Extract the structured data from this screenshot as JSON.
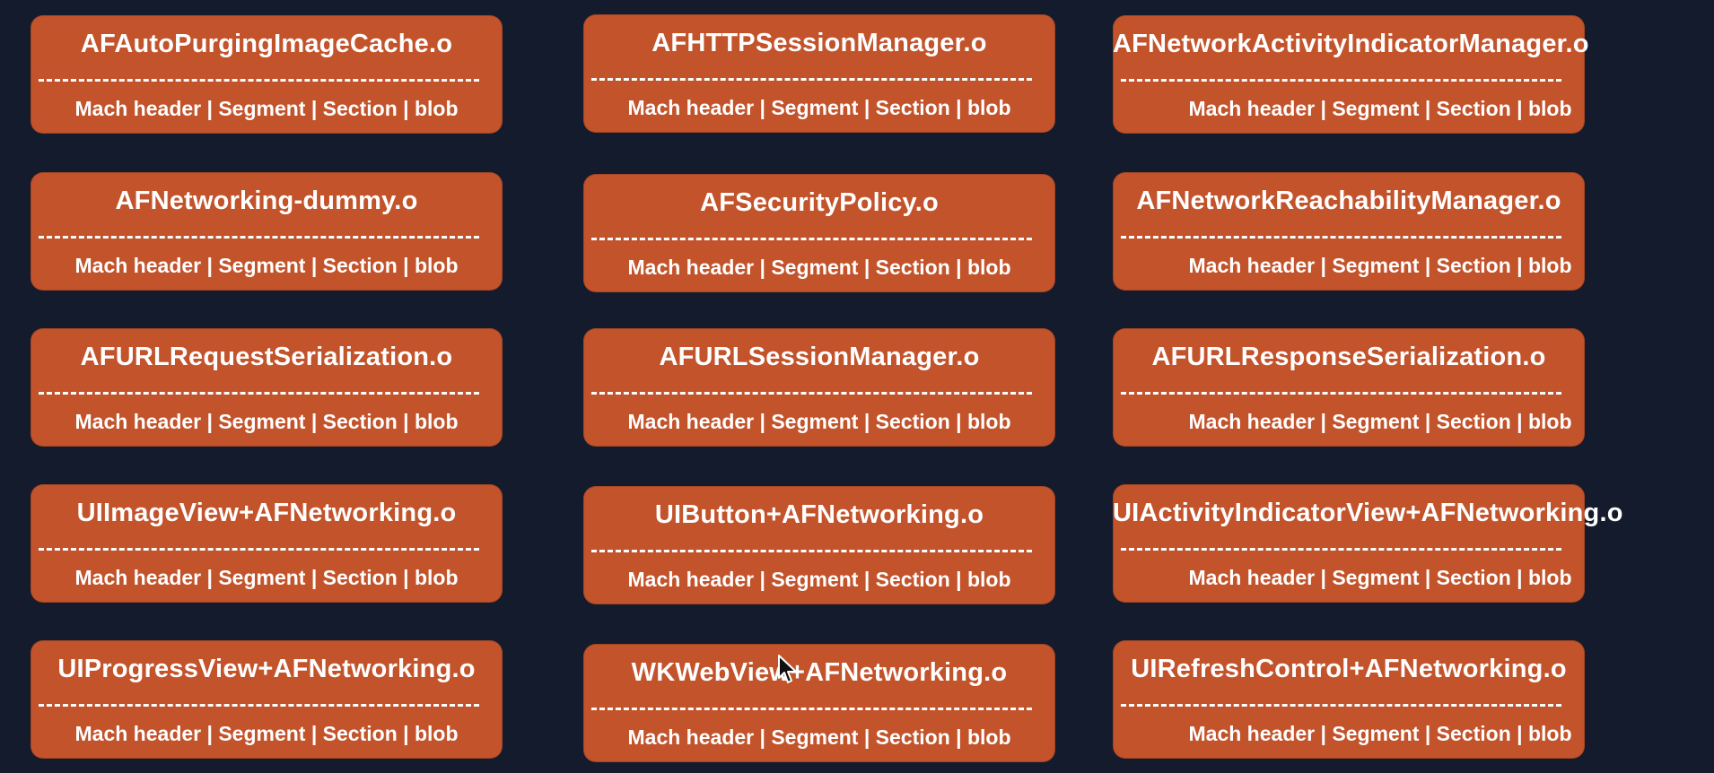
{
  "boxes": [
    {
      "name": "AFAutoPurgingImageCache.o",
      "layout": "Mach header | Segment | Section | blob"
    },
    {
      "name": "AFHTTPSessionManager.o",
      "layout": "Mach header | Segment | Section | blob"
    },
    {
      "name": "AFNetworkActivityIndicatorManager.o",
      "layout": "Mach header | Segment | Section | blob"
    },
    {
      "name": "AFNetworking-dummy.o",
      "layout": "Mach header | Segment | Section | blob"
    },
    {
      "name": "AFSecurityPolicy.o",
      "layout": "Mach header | Segment | Section | blob"
    },
    {
      "name": "AFNetworkReachabilityManager.o",
      "layout": "Mach header | Segment | Section | blob"
    },
    {
      "name": "AFURLRequestSerialization.o",
      "layout": "Mach header | Segment | Section | blob"
    },
    {
      "name": "AFURLSessionManager.o",
      "layout": "Mach header | Segment | Section | blob"
    },
    {
      "name": "AFURLResponseSerialization.o",
      "layout": "Mach header | Segment | Section | blob"
    },
    {
      "name": "UIImageView+AFNetworking.o",
      "layout": "Mach header | Segment | Section | blob"
    },
    {
      "name": "UIButton+AFNetworking.o",
      "layout": "Mach header | Segment | Section | blob"
    },
    {
      "name": "UIActivityIndicatorView+AFNetworking.o",
      "layout": "Mach header | Segment | Section | blob"
    },
    {
      "name": "UIProgressView+AFNetworking.o",
      "layout": "Mach header | Segment | Section | blob"
    },
    {
      "name": "WKWebView+AFNetworking.o",
      "layout": "Mach header | Segment | Section | blob"
    },
    {
      "name": "UIRefreshControl+AFNetworking.o",
      "layout": "Mach header | Segment | Section | blob"
    }
  ],
  "colors": {
    "background": "#141b2c",
    "box": "#c2532b",
    "text": "#ffffff"
  },
  "icons": {
    "cursor": "mouse-pointer-icon"
  }
}
